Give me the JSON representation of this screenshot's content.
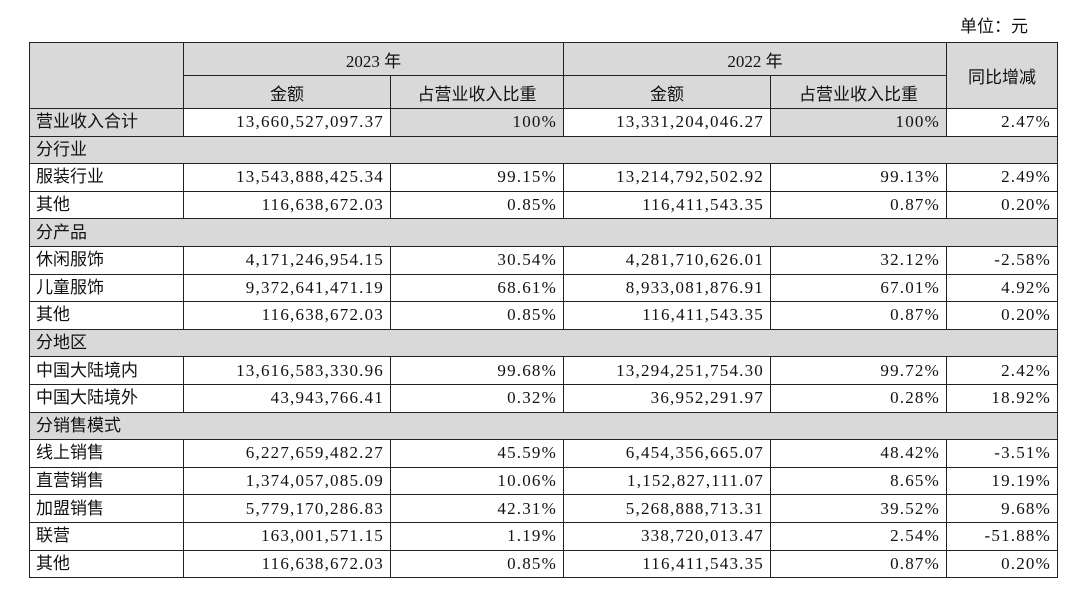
{
  "header": {
    "unit": "单位：元"
  },
  "table": {
    "years": [
      "2023 年",
      "2022 年"
    ],
    "yoy": "同比增减",
    "subheaders": [
      "金额",
      "占营业收入比重",
      "金额",
      "占营业收入比重"
    ],
    "rows": [
      {
        "cells": [
          "营业收入合计",
          "13,660,527,097.37",
          "100%",
          "13,331,204,046.27",
          "100%",
          "2.47%"
        ]
      },
      {
        "section": "分行业"
      },
      {
        "cells": [
          "服装行业",
          "13,543,888,425.34",
          "99.15%",
          "13,214,792,502.92",
          "99.13%",
          "2.49%"
        ]
      },
      {
        "cells": [
          "其他",
          "116,638,672.03",
          "0.85%",
          "116,411,543.35",
          "0.87%",
          "0.20%"
        ]
      },
      {
        "section": "分产品"
      },
      {
        "cells": [
          "休闲服饰",
          "4,171,246,954.15",
          "30.54%",
          "4,281,710,626.01",
          "32.12%",
          "-2.58%"
        ]
      },
      {
        "cells": [
          "儿童服饰",
          "9,372,641,471.19",
          "68.61%",
          "8,933,081,876.91",
          "67.01%",
          "4.92%"
        ]
      },
      {
        "cells": [
          "其他",
          "116,638,672.03",
          "0.85%",
          "116,411,543.35",
          "0.87%",
          "0.20%"
        ]
      },
      {
        "section": "分地区"
      },
      {
        "cells": [
          "中国大陆境内",
          "13,616,583,330.96",
          "99.68%",
          "13,294,251,754.30",
          "99.72%",
          "2.42%"
        ]
      },
      {
        "cells": [
          "中国大陆境外",
          "43,943,766.41",
          "0.32%",
          "36,952,291.97",
          "0.28%",
          "18.92%"
        ]
      },
      {
        "section": "分销售模式"
      },
      {
        "cells": [
          "线上销售",
          "6,227,659,482.27",
          "45.59%",
          "6,454,356,665.07",
          "48.42%",
          "-3.51%"
        ]
      },
      {
        "cells": [
          "直营销售",
          "1,374,057,085.09",
          "10.06%",
          "1,152,827,111.07",
          "8.65%",
          "19.19%"
        ]
      },
      {
        "cells": [
          "加盟销售",
          "5,779,170,286.83",
          "42.31%",
          "5,268,888,713.31",
          "39.52%",
          "9.68%"
        ]
      },
      {
        "cells": [
          "联营",
          "163,001,571.15",
          "1.19%",
          "338,720,013.47",
          "2.54%",
          "-51.88%"
        ]
      },
      {
        "cells": [
          "其他",
          "116,638,672.03",
          "0.85%",
          "116,411,543.35",
          "0.87%",
          "0.20%"
        ]
      }
    ]
  }
}
